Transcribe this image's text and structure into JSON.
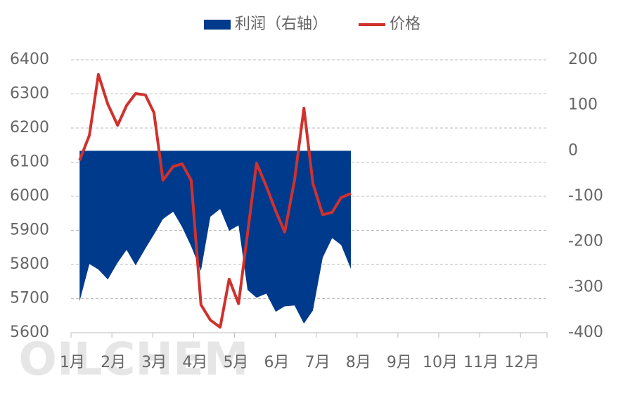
{
  "chart_data": {
    "type": "area-line",
    "watermark": "OILCHEM",
    "x": [
      1.21,
      1.45,
      1.67,
      1.9,
      2.14,
      2.36,
      2.58,
      2.82,
      3.03,
      3.25,
      3.5,
      3.72,
      3.94,
      4.18,
      4.41,
      4.65,
      4.87,
      5.1,
      5.32,
      5.54,
      5.78,
      6.01,
      6.23,
      6.47,
      6.7,
      6.92,
      7.16,
      7.39,
      7.61,
      7.85
    ],
    "xlim": [
      1,
      12.65
    ],
    "xticks": [
      {
        "value": 1,
        "label": "1月"
      },
      {
        "value": 2,
        "label": "2月"
      },
      {
        "value": 3,
        "label": "3月"
      },
      {
        "value": 4,
        "label": "4月"
      },
      {
        "value": 5,
        "label": "5月"
      },
      {
        "value": 6,
        "label": "6月"
      },
      {
        "value": 7,
        "label": "7月"
      },
      {
        "value": 8,
        "label": "8月"
      },
      {
        "value": 9,
        "label": "9月"
      },
      {
        "value": 10,
        "label": "10月"
      },
      {
        "value": 11,
        "label": "11月"
      },
      {
        "value": 12,
        "label": "12月"
      }
    ],
    "ylim": [
      5600,
      6400
    ],
    "yticks": [
      5600,
      5700,
      5800,
      5900,
      6000,
      6100,
      6200,
      6300,
      6400
    ],
    "y2lim": [
      -400,
      200
    ],
    "y2ticks": [
      -400,
      -300,
      -200,
      -100,
      0,
      100,
      200
    ],
    "grid": true,
    "legend": "top",
    "series": [
      {
        "name": "利润（右轴）",
        "kind": "area",
        "axis": "y2",
        "color": "#003a8c",
        "values": [
          -331,
          -249,
          -261,
          -283,
          -246,
          -218,
          -252,
          -215,
          -184,
          -150,
          -134,
          -168,
          -210,
          -264,
          -145,
          -128,
          -176,
          -164,
          -306,
          -323,
          -314,
          -354,
          -342,
          -340,
          -380,
          -351,
          -235,
          -192,
          -207,
          -260
        ]
      },
      {
        "name": "价格",
        "kind": "line",
        "axis": "y",
        "color": "#d0312d",
        "values": [
          6105,
          6179,
          6357,
          6270,
          6208,
          6266,
          6301,
          6297,
          6245,
          6047,
          6087,
          6095,
          6047,
          5682,
          5637,
          5616,
          5757,
          5685,
          5891,
          6097,
          6029,
          5957,
          5895,
          6047,
          6258,
          6037,
          5946,
          5953,
          5996,
          6008
        ]
      }
    ]
  }
}
